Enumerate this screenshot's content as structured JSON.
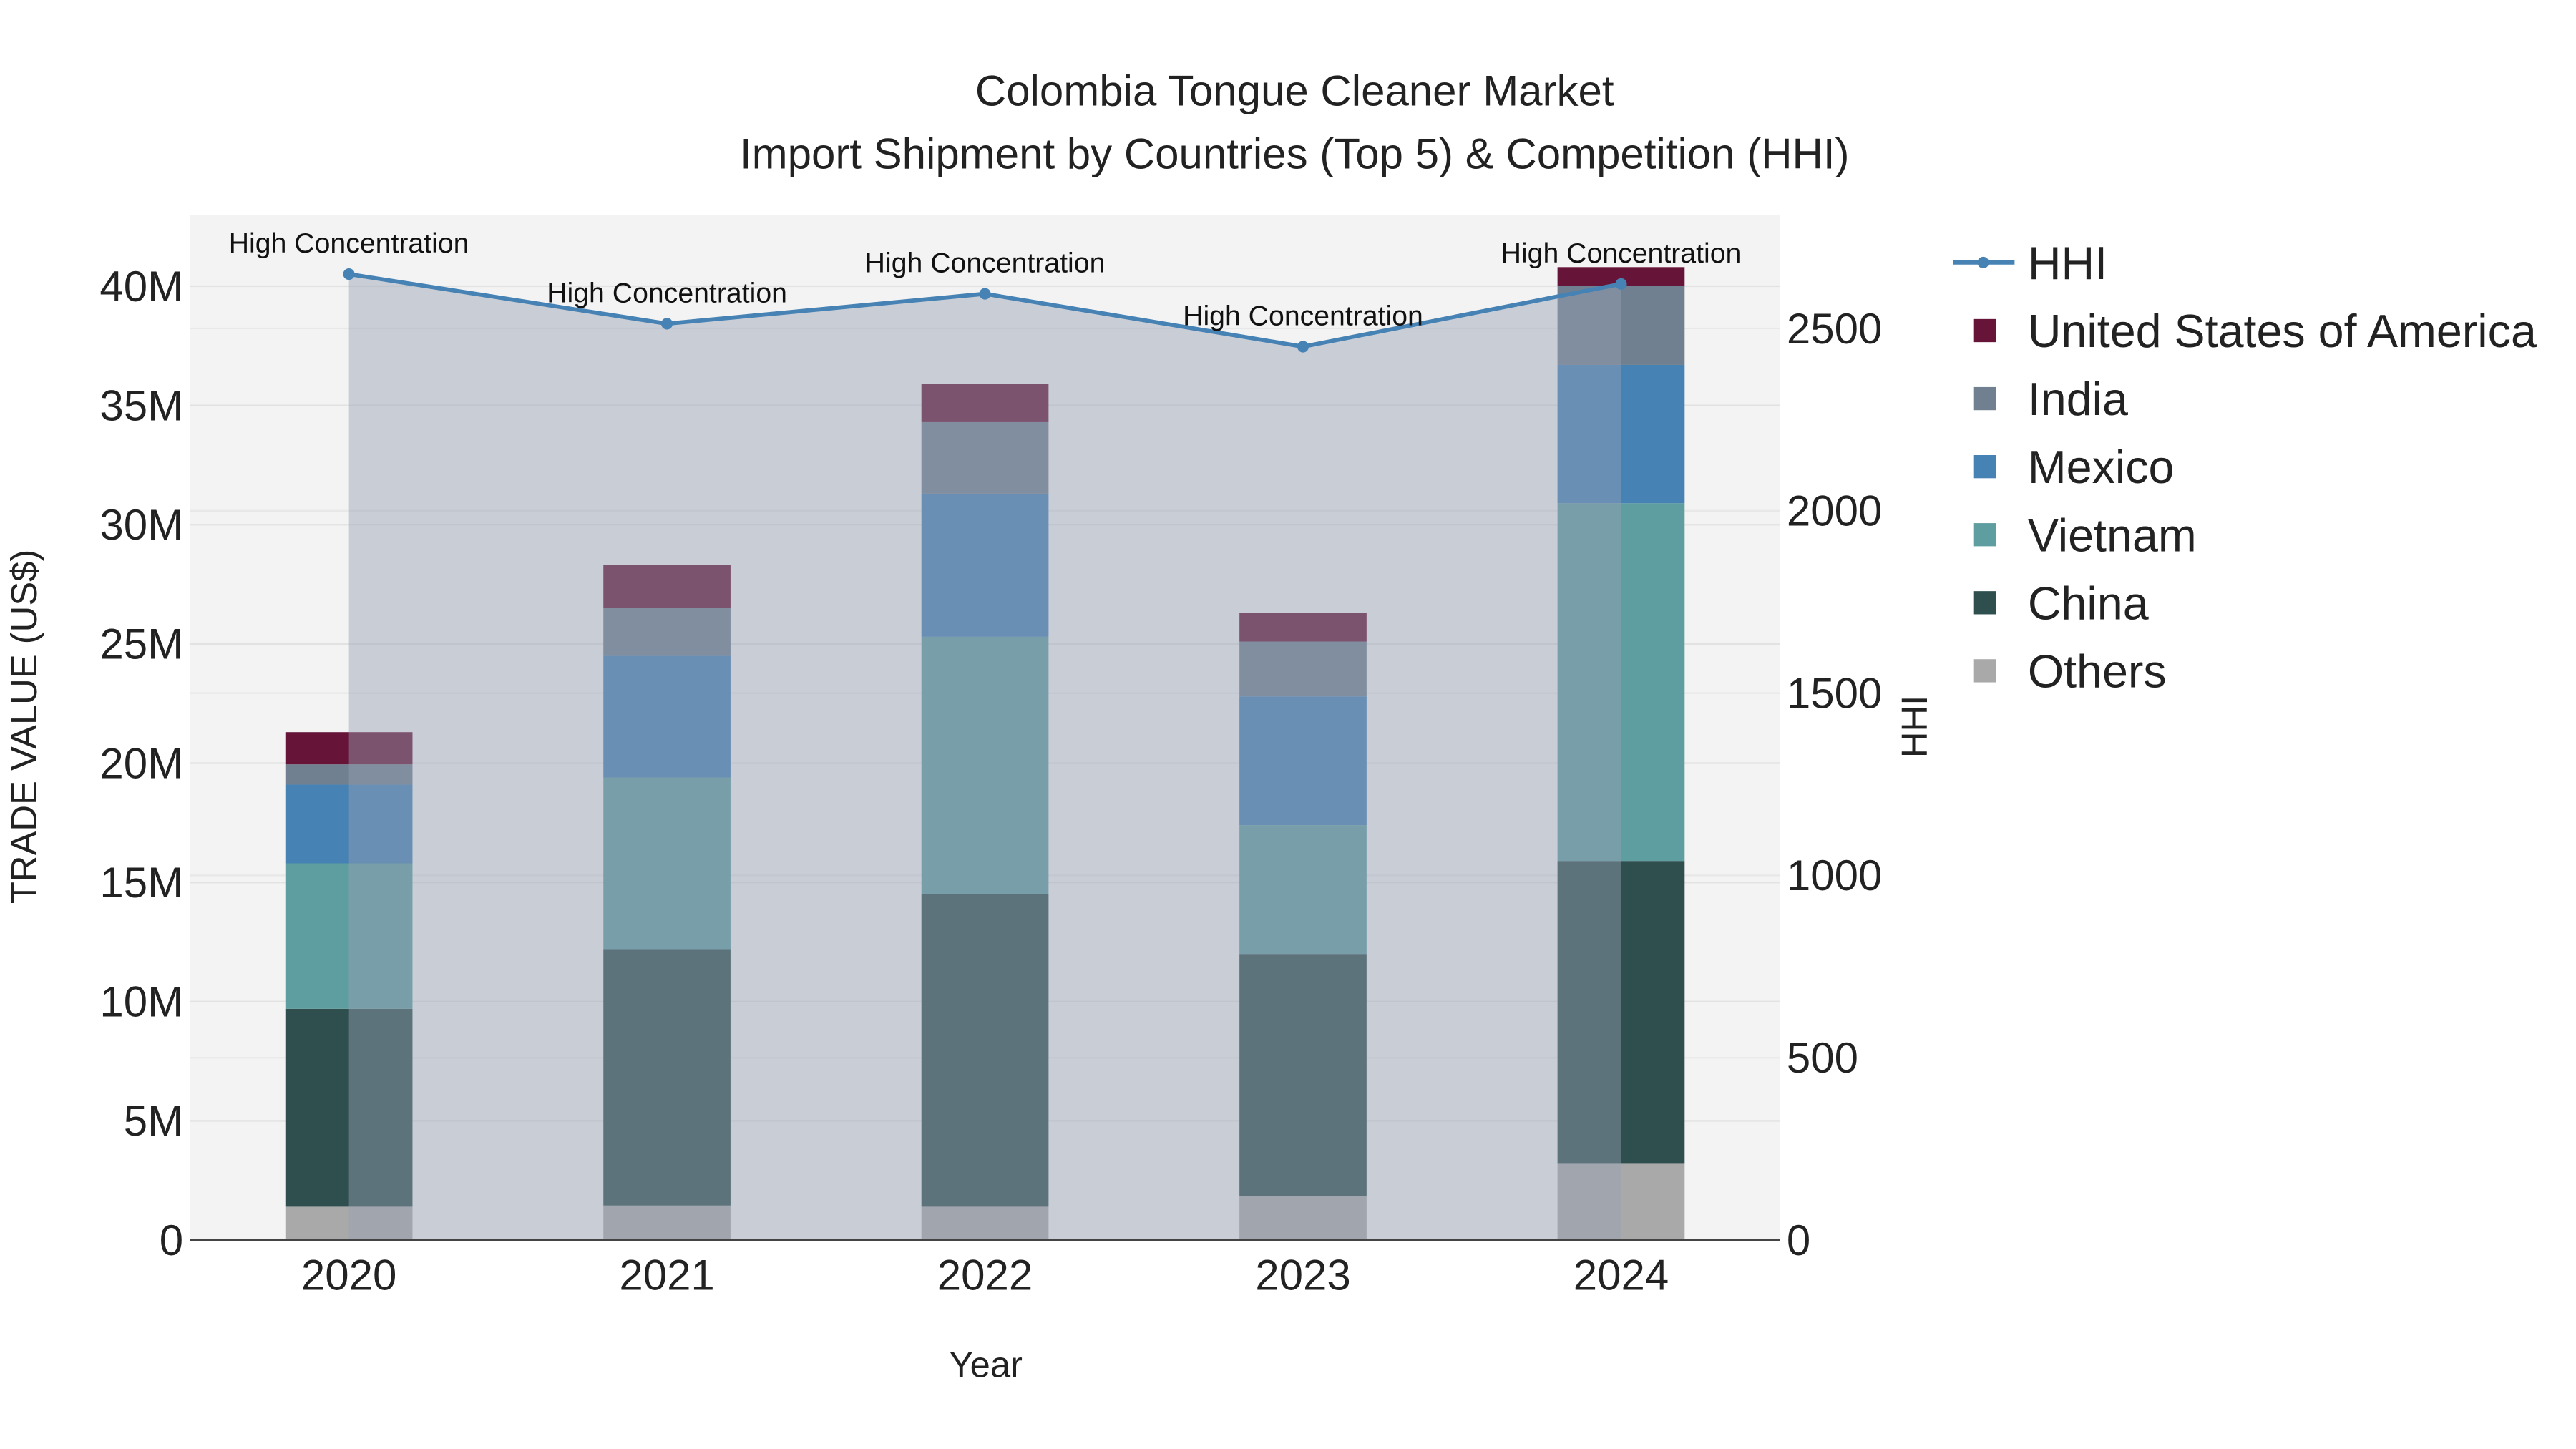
{
  "chart_data": {
    "type": "bar",
    "stacked": true,
    "title": "Colombia Tongue Cleaner Market",
    "subtitle": "Import Shipment by Countries (Top 5) & Competition (HHI)",
    "xlabel": "Year",
    "ylabel": "TRADE VALUE (US$)",
    "y2label": "HHI",
    "categories": [
      "2020",
      "2021",
      "2022",
      "2023",
      "2024"
    ],
    "ylim": [
      0,
      43
    ],
    "y_ticks": [
      0,
      5,
      10,
      15,
      20,
      25,
      30,
      35,
      40
    ],
    "y_tick_labels": [
      "0",
      "5M",
      "10M",
      "15M",
      "20M",
      "25M",
      "30M",
      "35M",
      "40M"
    ],
    "y2lim": [
      0,
      2812
    ],
    "y2_ticks": [
      0,
      500,
      1000,
      1500,
      2000,
      2500
    ],
    "y2_tick_labels": [
      "0",
      "500",
      "1000",
      "1500",
      "2000",
      "2500"
    ],
    "unit": "millions US$",
    "series": [
      {
        "name": "Others",
        "color": "#a9a9a9",
        "values": [
          1.4,
          1.45,
          1.4,
          1.85,
          3.2
        ]
      },
      {
        "name": "China",
        "color": "#2f4f4f",
        "values": [
          8.3,
          10.75,
          13.1,
          10.15,
          12.7
        ]
      },
      {
        "name": "Vietnam",
        "color": "#5f9ea0",
        "values": [
          6.1,
          7.2,
          10.8,
          5.4,
          15.0
        ]
      },
      {
        "name": "Mexico",
        "color": "#4682b4",
        "values": [
          3.3,
          5.1,
          6.0,
          5.4,
          5.8
        ]
      },
      {
        "name": "India",
        "color": "#708090",
        "values": [
          0.85,
          2.0,
          3.0,
          2.3,
          3.3
        ]
      },
      {
        "name": "United States of America",
        "color": "#661538",
        "values": [
          1.35,
          1.8,
          1.6,
          1.2,
          0.8
        ]
      }
    ],
    "line_series": {
      "name": "HHI",
      "color": "#4682b4",
      "values": [
        2649,
        2513,
        2595,
        2450,
        2622
      ],
      "annotations": [
        "High Concentration",
        "High Concentration",
        "High Concentration",
        "High Concentration",
        "High Concentration"
      ]
    },
    "legend_order": [
      "HHI",
      "United States of America",
      "India",
      "Mexico",
      "Vietnam",
      "China",
      "Others"
    ],
    "legend_position": "right",
    "grid": true
  }
}
